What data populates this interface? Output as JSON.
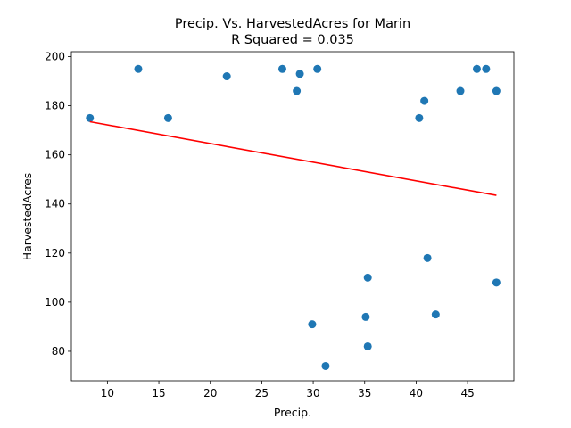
{
  "chart_data": {
    "type": "scatter",
    "title_line1": "Precip. Vs. HarvestedAcres for Marin",
    "title_line2": "R Squared =  0.035",
    "xlabel": "Precip.",
    "ylabel": "HarvestedAcres",
    "xlim": [
      6.5,
      49.5
    ],
    "ylim": [
      68,
      202
    ],
    "xticks": [
      10,
      15,
      20,
      25,
      30,
      35,
      40,
      45
    ],
    "yticks": [
      80,
      100,
      120,
      140,
      160,
      180,
      200
    ],
    "grid": false,
    "point_color": "#1f77b4",
    "line_color": "#ff0000",
    "points": [
      {
        "x": 8.3,
        "y": 175
      },
      {
        "x": 13.0,
        "y": 195
      },
      {
        "x": 15.9,
        "y": 175
      },
      {
        "x": 21.6,
        "y": 192
      },
      {
        "x": 27.0,
        "y": 195
      },
      {
        "x": 28.4,
        "y": 186
      },
      {
        "x": 28.7,
        "y": 193
      },
      {
        "x": 30.4,
        "y": 195
      },
      {
        "x": 29.9,
        "y": 91
      },
      {
        "x": 31.2,
        "y": 74
      },
      {
        "x": 35.1,
        "y": 94
      },
      {
        "x": 35.3,
        "y": 110
      },
      {
        "x": 35.3,
        "y": 82
      },
      {
        "x": 40.3,
        "y": 175
      },
      {
        "x": 40.8,
        "y": 182
      },
      {
        "x": 41.1,
        "y": 118
      },
      {
        "x": 41.9,
        "y": 95
      },
      {
        "x": 44.3,
        "y": 186
      },
      {
        "x": 45.9,
        "y": 195
      },
      {
        "x": 46.8,
        "y": 195
      },
      {
        "x": 47.8,
        "y": 186
      },
      {
        "x": 47.8,
        "y": 108
      }
    ],
    "fit_line": {
      "x": [
        8.3,
        47.8
      ],
      "y": [
        173.5,
        143.5
      ]
    }
  }
}
